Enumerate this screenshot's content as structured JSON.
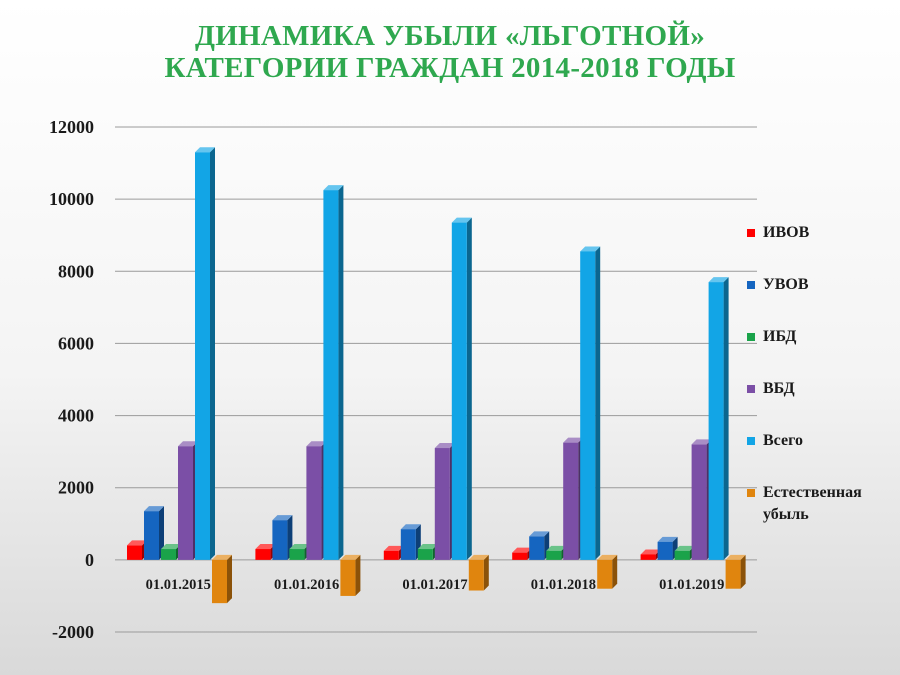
{
  "title": {
    "line1": "ДИНАМИКА УБЫЛИ «ЛЬГОТНОЙ»",
    "line2": "КАТЕГОРИИ ГРАЖДАН 2014-2018 ГОДЫ"
  },
  "chart_data": {
    "type": "bar",
    "categories": [
      "01.01.2015",
      "01.01.2016",
      "01.01.2017",
      "01.01.2018",
      "01.01.2019"
    ],
    "series": [
      {
        "name": "ИВОВ",
        "color": "#ff0000",
        "values": [
          400,
          300,
          250,
          200,
          150
        ]
      },
      {
        "name": "УВОВ",
        "color": "#1565c0",
        "values": [
          1350,
          1100,
          850,
          650,
          500
        ]
      },
      {
        "name": "ИБД",
        "color": "#1aa34a",
        "values": [
          300,
          300,
          300,
          250,
          250
        ]
      },
      {
        "name": "ВБД",
        "color": "#7b4fa6",
        "values": [
          3150,
          3150,
          3100,
          3250,
          3200
        ]
      },
      {
        "name": "Всего",
        "color": "#12a5e6",
        "values": [
          11300,
          10250,
          9350,
          8550,
          7700
        ]
      },
      {
        "name": "Естественная убыль",
        "color": "#e0850e",
        "values": [
          -1200,
          -1000,
          -850,
          -800,
          -800
        ]
      }
    ],
    "yticks": [
      -2000,
      0,
      2000,
      4000,
      6000,
      8000,
      10000,
      12000
    ],
    "ylim": [
      -2000,
      12000
    ],
    "grid": true,
    "legend_position": "right"
  }
}
